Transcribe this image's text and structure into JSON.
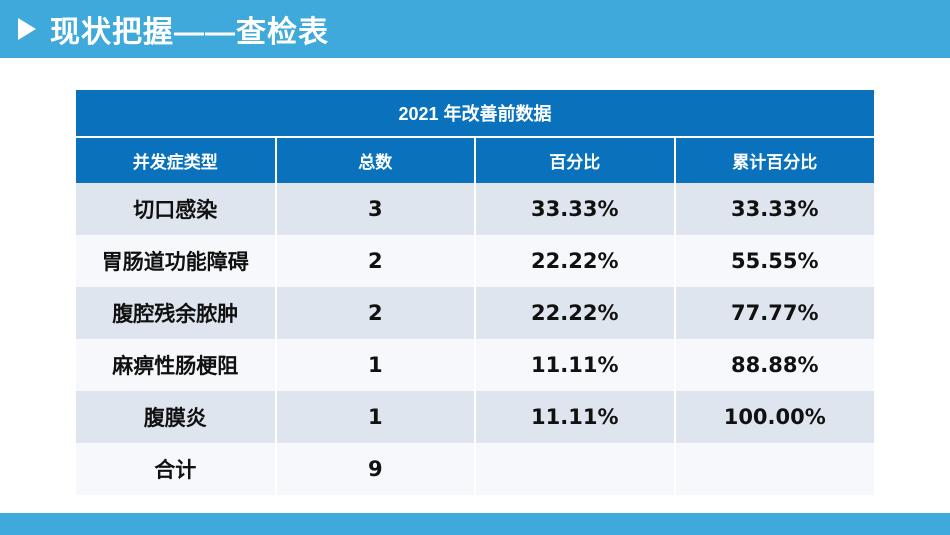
{
  "header": {
    "title": "现状把握——查检表"
  },
  "table": {
    "title": "2021 年改善前数据",
    "columns": [
      "并发症类型",
      "总数",
      "百分比",
      "累计百分比"
    ],
    "rows": [
      [
        "切口感染",
        "3",
        "33.33%",
        "33.33%"
      ],
      [
        "胃肠道功能障碍",
        "2",
        "22.22%",
        "55.55%"
      ],
      [
        "腹腔残余脓肿",
        "2",
        "22.22%",
        "77.77%"
      ],
      [
        "麻痹性肠梗阻",
        "1",
        "11.11%",
        "88.88%"
      ],
      [
        "腹膜炎",
        "1",
        "11.11%",
        "100.00%"
      ],
      [
        "合计",
        "9",
        "",
        ""
      ]
    ]
  },
  "colors": {
    "header_bar": "#3fa9db",
    "table_header": "#0a72bc",
    "row_odd": "#dee5ee",
    "row_even": "#f6f8fb",
    "footer_bar": "#3fa9db"
  }
}
